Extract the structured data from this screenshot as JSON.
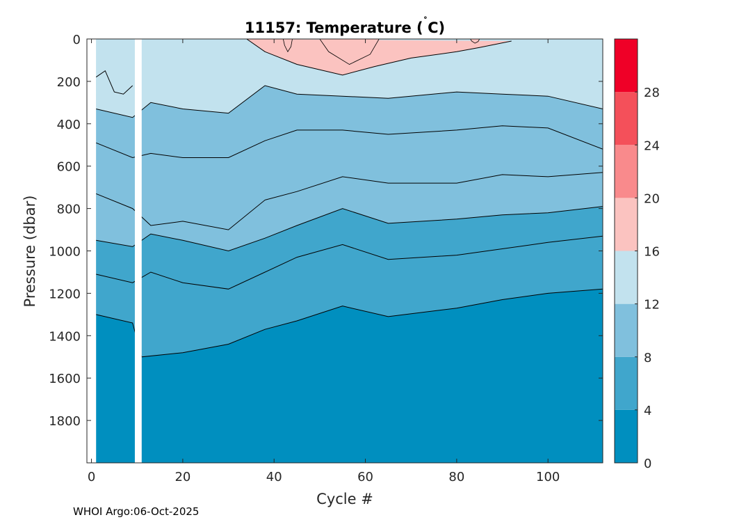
{
  "chart_data": {
    "type": "contour",
    "title": "11157:  Temperature (˚C)",
    "title_parts": {
      "prefix": "11157:  Temperature (",
      "deg": "˚",
      "suffix": "C)"
    },
    "xlabel": "Cycle #",
    "ylabel": "Pressure (dbar)",
    "xlim": [
      -1,
      112
    ],
    "ylim": [
      0,
      2000
    ],
    "y_reversed": true,
    "xticks": [
      0,
      20,
      40,
      60,
      80,
      100
    ],
    "yticks": [
      0,
      200,
      400,
      600,
      800,
      1000,
      1200,
      1400,
      1600,
      1800
    ],
    "colorbar": {
      "range": [
        0,
        32
      ],
      "levels": [
        0,
        4,
        8,
        12,
        16,
        20,
        24,
        28,
        32
      ],
      "ticks": [
        0,
        4,
        8,
        12,
        16,
        20,
        24,
        28
      ],
      "colors": [
        "#008fbf",
        "#40a6cc",
        "#80c0dd",
        "#c2e2ee",
        "#fbc3c0",
        "#f98a8c",
        "#f4505a",
        "#ef0027"
      ]
    },
    "data_gap_cycles": [
      9.5,
      11
    ],
    "contours": [
      {
        "level": 4,
        "depth": [
          [
            1,
            1300
          ],
          [
            9,
            1340
          ],
          [
            11,
            1500
          ],
          [
            20,
            1480
          ],
          [
            30,
            1440
          ],
          [
            38,
            1370
          ],
          [
            45,
            1330
          ],
          [
            55,
            1260
          ],
          [
            65,
            1310
          ],
          [
            80,
            1270
          ],
          [
            90,
            1230
          ],
          [
            100,
            1200
          ],
          [
            112,
            1180
          ]
        ]
      },
      {
        "level": 6,
        "depth": [
          [
            1,
            1110
          ],
          [
            9,
            1150
          ],
          [
            13,
            1100
          ],
          [
            20,
            1150
          ],
          [
            30,
            1180
          ],
          [
            38,
            1100
          ],
          [
            45,
            1030
          ],
          [
            55,
            970
          ],
          [
            65,
            1040
          ],
          [
            80,
            1020
          ],
          [
            90,
            990
          ],
          [
            100,
            960
          ],
          [
            112,
            930
          ]
        ]
      },
      {
        "level": 8,
        "depth": [
          [
            1,
            950
          ],
          [
            9,
            980
          ],
          [
            13,
            920
          ],
          [
            20,
            950
          ],
          [
            30,
            1000
          ],
          [
            38,
            940
          ],
          [
            45,
            880
          ],
          [
            55,
            800
          ],
          [
            65,
            870
          ],
          [
            80,
            850
          ],
          [
            90,
            830
          ],
          [
            100,
            820
          ],
          [
            112,
            790
          ]
        ]
      },
      {
        "level": 10,
        "depth": [
          [
            1,
            730
          ],
          [
            9,
            800
          ],
          [
            13,
            880
          ],
          [
            20,
            860
          ],
          [
            30,
            900
          ],
          [
            38,
            760
          ],
          [
            45,
            720
          ],
          [
            55,
            650
          ],
          [
            65,
            680
          ],
          [
            80,
            680
          ],
          [
            90,
            640
          ],
          [
            100,
            650
          ],
          [
            112,
            630
          ]
        ]
      },
      {
        "level": 11,
        "depth": [
          [
            1,
            490
          ],
          [
            9,
            560
          ],
          [
            13,
            540
          ],
          [
            20,
            560
          ],
          [
            30,
            560
          ],
          [
            38,
            480
          ],
          [
            45,
            430
          ],
          [
            55,
            430
          ],
          [
            65,
            450
          ],
          [
            80,
            430
          ],
          [
            90,
            410
          ],
          [
            100,
            420
          ],
          [
            112,
            520
          ]
        ]
      },
      {
        "level": 12,
        "depth": [
          [
            1,
            330
          ],
          [
            9,
            370
          ],
          [
            13,
            300
          ],
          [
            20,
            330
          ],
          [
            30,
            350
          ],
          [
            38,
            220
          ],
          [
            45,
            260
          ],
          [
            55,
            270
          ],
          [
            65,
            280
          ],
          [
            80,
            250
          ],
          [
            90,
            260
          ],
          [
            100,
            270
          ],
          [
            112,
            330
          ]
        ]
      },
      {
        "level": 14,
        "depth": [
          [
            1,
            180
          ],
          [
            3,
            150
          ],
          [
            5,
            250
          ],
          [
            7,
            260
          ],
          [
            9,
            220
          ]
        ]
      },
      {
        "level": 16,
        "depth": [
          [
            34,
            0
          ],
          [
            38,
            60
          ],
          [
            45,
            120
          ],
          [
            55,
            170
          ],
          [
            62,
            130
          ],
          [
            70,
            90
          ],
          [
            80,
            60
          ],
          [
            85,
            40
          ],
          [
            92,
            10
          ]
        ]
      }
    ],
    "warm_patches": [
      {
        "level": 16,
        "cycles": [
          42,
          44
        ],
        "max_depth": 60
      },
      {
        "level": 16,
        "cycles": [
          50,
          63
        ],
        "max_depth": 120
      },
      {
        "level": 16,
        "cycles": [
          83,
          85
        ],
        "max_depth": 20
      }
    ]
  },
  "footer": "WHOI Argo:06-Oct-2025"
}
